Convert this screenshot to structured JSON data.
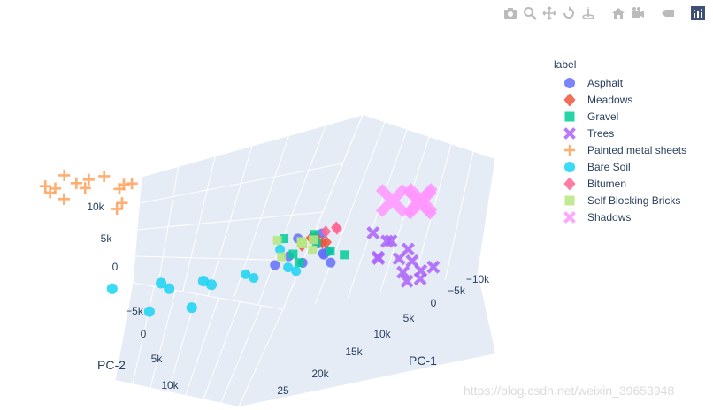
{
  "modebar": {
    "buttons": [
      {
        "name": "camera-icon"
      },
      {
        "name": "zoom-icon"
      },
      {
        "name": "pan-icon"
      },
      {
        "name": "orbit-icon"
      },
      {
        "name": "turntable-icon"
      },
      {
        "gap": true
      },
      {
        "name": "home-icon"
      },
      {
        "name": "reset-camera-icon"
      },
      {
        "gap": true
      },
      {
        "name": "spike-lines-icon"
      },
      {
        "gap": true
      },
      {
        "name": "plotly-logo-icon"
      }
    ],
    "color": "#bbbbbb"
  },
  "watermark": "https://blog.csdn.net/weixin_39653948",
  "chart_data": {
    "type": "scatter3d",
    "legend_title": "label",
    "axes": {
      "x": {
        "title": "PC-1",
        "ticks": [
          "−10k",
          "−5k",
          "0",
          "5k",
          "10k",
          "15k",
          "20k",
          "25"
        ]
      },
      "y": {
        "title": "PC-2",
        "ticks": [
          "−5k",
          "0",
          "5k",
          "10k"
        ]
      },
      "z": {
        "title": "",
        "ticks": [
          "0",
          "5k",
          "10k"
        ]
      }
    },
    "grid": true,
    "legend_position": "right",
    "series": [
      {
        "name": "Asphalt",
        "color": "#636efa",
        "symbol": "circle",
        "points": [
          [
            4000,
            -3500,
            3500
          ],
          [
            3000,
            -3000,
            5000
          ],
          [
            5000,
            -4000,
            4000
          ],
          [
            6000,
            -3000,
            3000
          ],
          [
            2500,
            -2500,
            3500
          ],
          [
            4500,
            -2000,
            4500
          ],
          [
            5500,
            -4500,
            4800
          ],
          [
            3500,
            -3800,
            2500
          ],
          [
            7000,
            -2500,
            3800
          ],
          [
            8000,
            -2000,
            3000
          ]
        ]
      },
      {
        "name": "Meadows",
        "color": "#ef553b",
        "symbol": "diamond",
        "points": [
          [
            3000,
            -3000,
            4000
          ],
          [
            4000,
            -3000,
            5000
          ],
          [
            3500,
            -3500,
            4500
          ],
          [
            5000,
            -2500,
            4200
          ],
          [
            2500,
            -2000,
            3800
          ]
        ]
      },
      {
        "name": "Gravel",
        "color": "#00cc96",
        "symbol": "square",
        "points": [
          [
            4000,
            -4000,
            4000
          ],
          [
            5000,
            -3500,
            5000
          ],
          [
            2000,
            -2000,
            4000
          ],
          [
            6500,
            -3000,
            3200
          ],
          [
            5500,
            -1500,
            4600
          ],
          [
            3000,
            -4500,
            3500
          ],
          [
            7000,
            -2800,
            4200
          ]
        ]
      },
      {
        "name": "Trees",
        "color": "#ab63fa",
        "symbol": "x",
        "points": [
          [
            -2000,
            -6000,
            2000
          ],
          [
            -4000,
            -6000,
            1000
          ],
          [
            -3000,
            -5000,
            3000
          ],
          [
            -1000,
            -5000,
            2000
          ],
          [
            -5000,
            -7000,
            500
          ],
          [
            -2000,
            -7500,
            1500
          ],
          [
            -3500,
            -4500,
            2500
          ],
          [
            -1500,
            -6500,
            1000
          ],
          [
            -4500,
            -5500,
            1800
          ],
          [
            -2500,
            -4000,
            3500
          ],
          [
            0,
            -5500,
            2500
          ],
          [
            -3000,
            -7000,
            0
          ],
          [
            -1000,
            -7000,
            500
          ]
        ]
      },
      {
        "name": "Painted metal sheets",
        "color": "#ffa15a",
        "symbol": "cross",
        "points": [
          [
            12000,
            6000,
            9000
          ],
          [
            14000,
            7000,
            10000
          ],
          [
            16000,
            8000,
            9500
          ],
          [
            18000,
            6500,
            10500
          ],
          [
            13000,
            8500,
            8500
          ],
          [
            17000,
            9000,
            8800
          ],
          [
            15000,
            5500,
            9800
          ],
          [
            19000,
            7500,
            9200
          ],
          [
            11000,
            7000,
            8000
          ],
          [
            20000,
            8000,
            10000
          ],
          [
            14500,
            9500,
            9000
          ],
          [
            16500,
            5000,
            8500
          ],
          [
            13500,
            6000,
            7500
          ],
          [
            18500,
            9000,
            9600
          ]
        ]
      },
      {
        "name": "Bare Soil",
        "color": "#19d3f3",
        "symbol": "circle",
        "points": [
          [
            6000,
            -2000,
            2000
          ],
          [
            8000,
            0,
            1000
          ],
          [
            10000,
            2000,
            0
          ],
          [
            12000,
            4000,
            -500
          ],
          [
            15000,
            6000,
            -1000
          ],
          [
            9000,
            -1000,
            1500
          ],
          [
            11000,
            1000,
            500
          ],
          [
            7000,
            -3000,
            2500
          ],
          [
            13000,
            3000,
            -200
          ],
          [
            5000,
            -1000,
            3000
          ],
          [
            14000,
            1000,
            -800
          ],
          [
            16000,
            3000,
            -1500
          ]
        ]
      },
      {
        "name": "Bitumen",
        "color": "#ff6692",
        "symbol": "diamond",
        "points": [
          [
            2000,
            -3500,
            5500
          ],
          [
            3000,
            -4000,
            6000
          ],
          [
            2500,
            -3000,
            5000
          ]
        ]
      },
      {
        "name": "Self Blocking Bricks",
        "color": "#b6e880",
        "symbol": "square",
        "points": [
          [
            5000,
            -2500,
            4500
          ],
          [
            6000,
            -3000,
            5000
          ],
          [
            4000,
            -2000,
            4000
          ],
          [
            7000,
            -2000,
            3500
          ],
          [
            5500,
            -3500,
            5500
          ],
          [
            6500,
            -1500,
            4800
          ],
          [
            4500,
            -3000,
            3800
          ]
        ]
      },
      {
        "name": "Shadows",
        "color": "#ff97ff",
        "symbol": "x",
        "points": [
          [
            -3000,
            -7000,
            8000
          ],
          [
            -2000,
            -7500,
            9000
          ],
          [
            -1000,
            -6000,
            8500
          ],
          [
            -4000,
            -6500,
            7500
          ]
        ]
      }
    ]
  }
}
